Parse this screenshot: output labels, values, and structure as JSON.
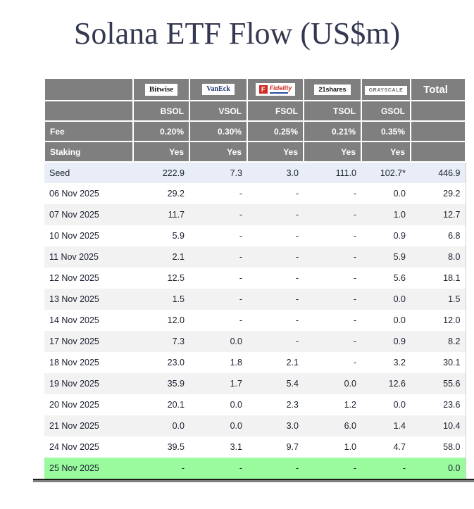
{
  "title": "Solana ETF Flow (US$m)",
  "chart_data": {
    "type": "table",
    "title": "Solana ETF Flow (US$m)",
    "providers": [
      {
        "brand": "Bitwise",
        "ticker": "BSOL",
        "fee": "0.20%",
        "staking": "Yes"
      },
      {
        "brand": "VanEck",
        "ticker": "VSOL",
        "fee": "0.30%",
        "staking": "Yes"
      },
      {
        "brand": "Fidelity",
        "ticker": "FSOL",
        "fee": "0.25%",
        "staking": "Yes"
      },
      {
        "brand": "21shares",
        "ticker": "TSOL",
        "fee": "0.21%",
        "staking": "Yes"
      },
      {
        "brand": "GRAYSCALE",
        "ticker": "GSOL",
        "fee": "0.35%",
        "staking": "Yes"
      }
    ],
    "labels": {
      "fee": "Fee",
      "staking": "Staking",
      "total": "Total"
    },
    "rows": [
      {
        "label": "Seed",
        "values": [
          "222.9",
          "7.3",
          "3.0",
          "111.0",
          "102.7*"
        ],
        "total": "446.9",
        "highlight": "seed"
      },
      {
        "label": "06 Nov 2025",
        "values": [
          "29.2",
          "-",
          "-",
          "-",
          "0.0"
        ],
        "total": "29.2"
      },
      {
        "label": "07 Nov 2025",
        "values": [
          "11.7",
          "-",
          "-",
          "-",
          "1.0"
        ],
        "total": "12.7"
      },
      {
        "label": "10 Nov 2025",
        "values": [
          "5.9",
          "-",
          "-",
          "-",
          "0.9"
        ],
        "total": "6.8"
      },
      {
        "label": "11 Nov 2025",
        "values": [
          "2.1",
          "-",
          "-",
          "-",
          "5.9"
        ],
        "total": "8.0"
      },
      {
        "label": "12 Nov 2025",
        "values": [
          "12.5",
          "-",
          "-",
          "-",
          "5.6"
        ],
        "total": "18.1"
      },
      {
        "label": "13 Nov 2025",
        "values": [
          "1.5",
          "-",
          "-",
          "-",
          "0.0"
        ],
        "total": "1.5"
      },
      {
        "label": "14 Nov 2025",
        "values": [
          "12.0",
          "-",
          "-",
          "-",
          "0.0"
        ],
        "total": "12.0"
      },
      {
        "label": "17 Nov 2025",
        "values": [
          "7.3",
          "0.0",
          "-",
          "-",
          "0.9"
        ],
        "total": "8.2"
      },
      {
        "label": "18 Nov 2025",
        "values": [
          "23.0",
          "1.8",
          "2.1",
          "-",
          "3.2"
        ],
        "total": "30.1"
      },
      {
        "label": "19 Nov 2025",
        "values": [
          "35.9",
          "1.7",
          "5.4",
          "0.0",
          "12.6"
        ],
        "total": "55.6"
      },
      {
        "label": "20 Nov 2025",
        "values": [
          "20.1",
          "0.0",
          "2.3",
          "1.2",
          "0.0"
        ],
        "total": "23.6"
      },
      {
        "label": "21 Nov 2025",
        "values": [
          "0.0",
          "0.0",
          "3.0",
          "6.0",
          "1.4"
        ],
        "total": "10.4"
      },
      {
        "label": "24 Nov 2025",
        "values": [
          "39.5",
          "3.1",
          "9.7",
          "1.0",
          "4.7"
        ],
        "total": "58.0"
      },
      {
        "label": "25 Nov 2025",
        "values": [
          "-",
          "-",
          "-",
          "-",
          "-"
        ],
        "total": "0.0",
        "highlight": "latest"
      }
    ],
    "colors": {
      "header_bg": "#7f7f7f",
      "seed_row_bg": "#e9edf8",
      "alt_row_bg": "#f2f2f2",
      "plain_row_bg": "#ffffff",
      "latest_row_bg": "#99fb9e",
      "title_color": "#343850",
      "text_color": "#1b2030",
      "fidelity_red": "#cf2e27",
      "vaneck_blue": "#20356e"
    }
  }
}
